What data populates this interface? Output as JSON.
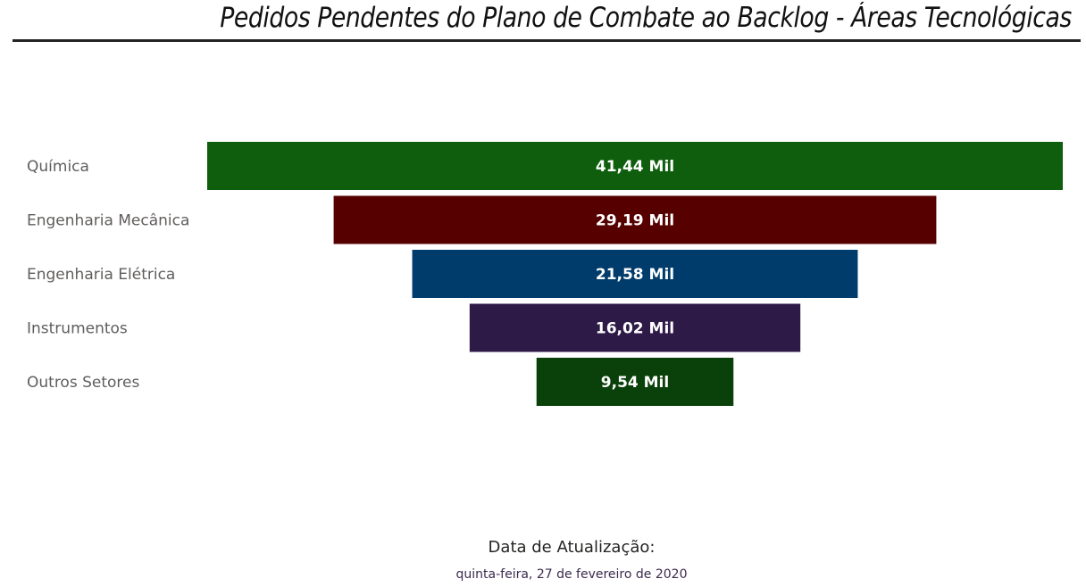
{
  "chart_data": {
    "type": "funnel",
    "title": "Pedidos Pendentes do Plano de Combate ao Backlog - Áreas Tecnológicas",
    "categories": [
      "Química",
      "Engenharia Mecânica",
      "Engenharia Elétrica",
      "Instrumentos",
      "Outros Setores"
    ],
    "values": [
      41.44,
      29.19,
      21.58,
      16.02,
      9.54
    ],
    "data_labels": [
      "41,44 Mil",
      "29,19 Mil",
      "21,58 Mil",
      "16,02 Mil",
      "9,54 Mil"
    ],
    "colors": [
      "#0e5e0e",
      "#560000",
      "#003c6b",
      "#2e1a47",
      "#0a400a"
    ]
  },
  "footer": {
    "label": "Data de Atualização:",
    "date": "quinta-feira, 27 de fevereiro de 2020"
  }
}
